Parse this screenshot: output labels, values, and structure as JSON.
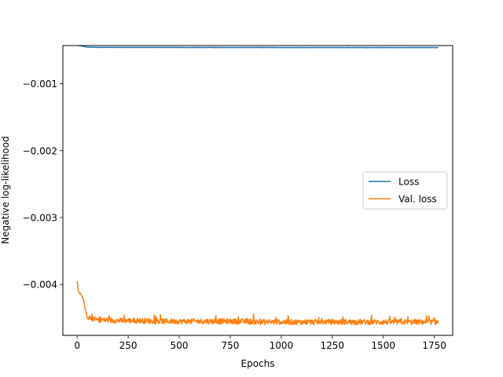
{
  "chart_data": {
    "type": "line",
    "title": "",
    "xlabel": "Epochs",
    "ylabel": "Negative log-likelihood",
    "xlim": [
      -70,
      1840
    ],
    "ylim": [
      -0.00476,
      -0.00043
    ],
    "x_ticks": [
      0,
      250,
      500,
      750,
      1000,
      1250,
      1500,
      1750
    ],
    "x_tick_labels": [
      "0",
      "250",
      "500",
      "750",
      "1000",
      "1250",
      "1500",
      "1750"
    ],
    "y_ticks": [
      -0.001,
      -0.002,
      -0.003,
      -0.004
    ],
    "y_tick_labels": [
      "−0.001",
      "−0.002",
      "−0.003",
      "−0.004"
    ],
    "grid": false,
    "legend_position": "center-right",
    "series": [
      {
        "name": "Loss",
        "color": "#1f77b4",
        "x": [
          0,
          10,
          20,
          30,
          40,
          50,
          60,
          80,
          100,
          150,
          200,
          300,
          400,
          500,
          600,
          700,
          800,
          900,
          1000,
          1100,
          1200,
          1300,
          1400,
          1500,
          1600,
          1700,
          1770
        ],
        "y": [
          -0.00043,
          -0.000432,
          -0.000436,
          -0.000442,
          -0.000448,
          -0.000452,
          -0.000454,
          -0.000456,
          -0.000457,
          -0.000457,
          -0.000458,
          -0.000458,
          -0.000458,
          -0.000459,
          -0.000459,
          -0.000459,
          -0.000459,
          -0.000459,
          -0.00046,
          -0.00046,
          -0.00046,
          -0.00046,
          -0.00046,
          -0.00046,
          -0.00046,
          -0.00046,
          -0.00046
        ],
        "noise": 2e-06
      },
      {
        "name": "Val. loss",
        "color": "#ff7f0e",
        "x": [
          0,
          5,
          10,
          20,
          30,
          40,
          50,
          60,
          80,
          100,
          150,
          200,
          300,
          400,
          500,
          600,
          700,
          800,
          900,
          1000,
          1100,
          1200,
          1300,
          1400,
          1500,
          1600,
          1700,
          1770
        ],
        "y": [
          -0.00395,
          -0.00408,
          -0.00412,
          -0.00415,
          -0.00422,
          -0.00438,
          -0.00448,
          -0.0045,
          -0.00452,
          -0.00453,
          -0.00453,
          -0.00454,
          -0.00454,
          -0.00455,
          -0.00455,
          -0.00455,
          -0.00455,
          -0.00455,
          -0.00456,
          -0.00456,
          -0.00456,
          -0.00456,
          -0.00456,
          -0.00456,
          -0.00456,
          -0.00456,
          -0.00456,
          -0.00456
        ],
        "noise": 4e-05
      }
    ]
  }
}
